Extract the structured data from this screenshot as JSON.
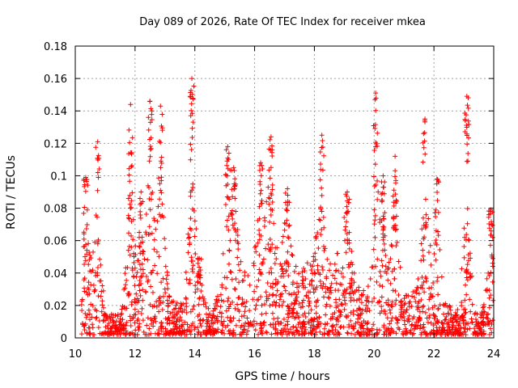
{
  "chart_data": {
    "type": "scatter",
    "title": "Day 089 of 2026, Rate Of TEC Index for receiver mkea",
    "xlabel": "GPS time / hours",
    "ylabel": "ROTI / TECUs",
    "xlim": [
      10,
      24
    ],
    "ylim": [
      0,
      0.18
    ],
    "x_ticks": [
      10,
      12,
      14,
      16,
      18,
      20,
      22,
      24
    ],
    "x_tick_labels": [
      "10",
      "12",
      "14",
      "16",
      "18",
      "20",
      "22",
      "24"
    ],
    "y_ticks": [
      0,
      0.02,
      0.04,
      0.06,
      0.08,
      0.1,
      0.12,
      0.14,
      0.16,
      0.18
    ],
    "y_tick_labels": [
      "0",
      "0.02",
      "0.04",
      "0.06",
      "0.08",
      "0.1",
      "0.12",
      "0.14",
      "0.16",
      "0.18"
    ],
    "grid": true,
    "marker": "+",
    "color": "#ff0000",
    "peaks": [
      {
        "x": 10.35,
        "y": 0.099
      },
      {
        "x": 10.75,
        "y": 0.121
      },
      {
        "x": 11.85,
        "y": 0.144
      },
      {
        "x": 12.2,
        "y": 0.09
      },
      {
        "x": 12.5,
        "y": 0.146
      },
      {
        "x": 12.85,
        "y": 0.143
      },
      {
        "x": 13.9,
        "y": 0.16
      },
      {
        "x": 14.15,
        "y": 0.049
      },
      {
        "x": 15.1,
        "y": 0.118
      },
      {
        "x": 15.3,
        "y": 0.105
      },
      {
        "x": 16.2,
        "y": 0.108
      },
      {
        "x": 16.55,
        "y": 0.124
      },
      {
        "x": 17.1,
        "y": 0.092
      },
      {
        "x": 18.25,
        "y": 0.125
      },
      {
        "x": 19.1,
        "y": 0.09
      },
      {
        "x": 20.05,
        "y": 0.151
      },
      {
        "x": 20.3,
        "y": 0.1
      },
      {
        "x": 20.7,
        "y": 0.112
      },
      {
        "x": 21.7,
        "y": 0.135
      },
      {
        "x": 22.1,
        "y": 0.098
      },
      {
        "x": 23.1,
        "y": 0.149
      },
      {
        "x": 23.9,
        "y": 0.079
      }
    ]
  }
}
